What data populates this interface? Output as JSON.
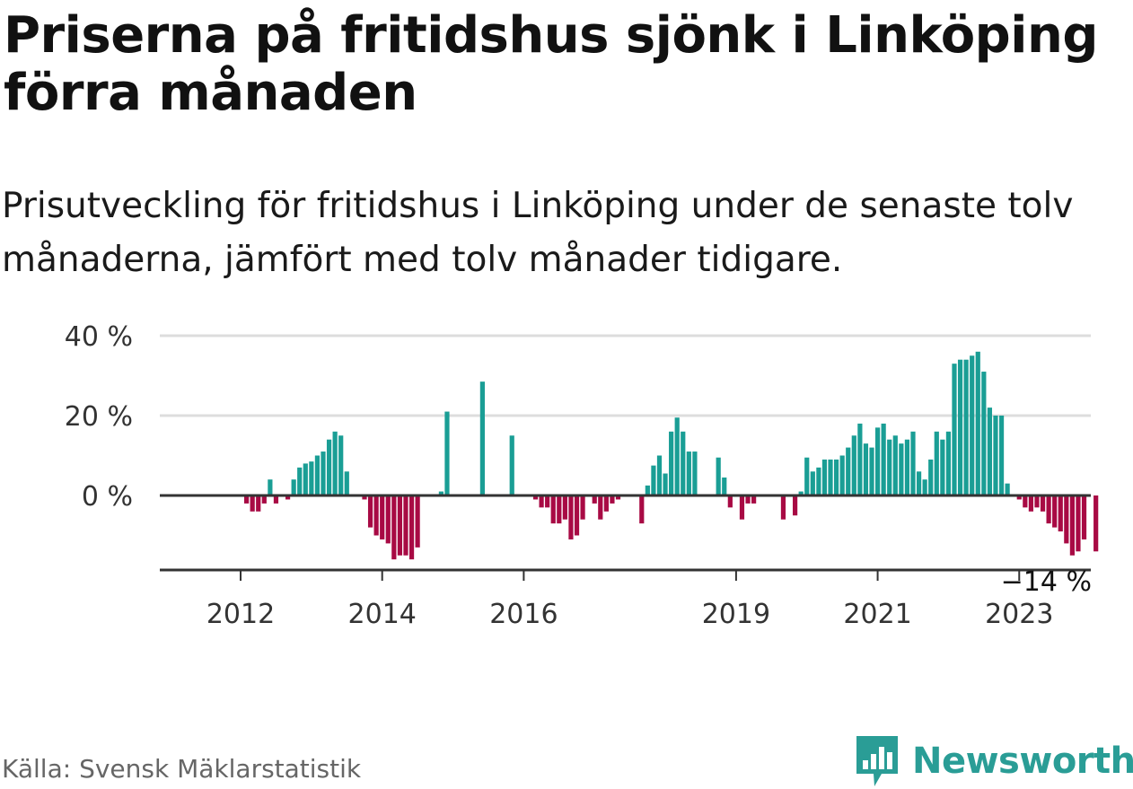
{
  "title": "Priserna på fritidshus sjönk i Linköping förra månaden",
  "subtitle": "Prisutveckling för fritidshus i Linköping under de senaste tolv månaderna, jämfört med tolv månader tidigare.",
  "source": "Källa: Svensk Mäklarstatistik",
  "brand": {
    "name": "Newsworthy",
    "color": "#2a9d96"
  },
  "colors": {
    "positive": "#1a9e95",
    "negative": "#a80a44",
    "grid": "#dddddd",
    "axis": "#333333"
  },
  "chart_data": {
    "type": "bar",
    "ylim": [
      -18,
      40
    ],
    "yticks": [
      0,
      20,
      40
    ],
    "ytick_labels": [
      "0 %",
      "20 %",
      "40 %"
    ],
    "xticks": [
      {
        "label": "2012",
        "index": 6
      },
      {
        "label": "2014",
        "index": 30
      },
      {
        "label": "2016",
        "index": 54
      },
      {
        "label": "2019",
        "index": 90
      },
      {
        "label": "2021",
        "index": 114
      },
      {
        "label": "2023",
        "index": 138
      }
    ],
    "end_label": "−14 %",
    "grid": true,
    "values": [
      null,
      null,
      null,
      null,
      null,
      null,
      null,
      -2,
      -4,
      -4,
      -2,
      4,
      -2,
      null,
      -1,
      4,
      7,
      8,
      8.5,
      10,
      11,
      14,
      16,
      15,
      6,
      null,
      null,
      -1,
      -8,
      -10,
      -11,
      -12,
      -16,
      -15,
      -15,
      -16,
      -13,
      null,
      null,
      null,
      1,
      21,
      null,
      null,
      null,
      null,
      null,
      28.5,
      null,
      null,
      null,
      null,
      15,
      null,
      null,
      null,
      -1,
      -3,
      -3,
      -7,
      -7,
      -6,
      -11,
      -10,
      -6,
      null,
      -2,
      -6,
      -4,
      -2,
      -1,
      null,
      null,
      null,
      -7,
      2.5,
      7.5,
      10,
      5.5,
      16,
      19.5,
      16,
      11,
      11,
      null,
      null,
      null,
      9.5,
      4.5,
      -3,
      null,
      -6,
      -2,
      -2,
      null,
      null,
      null,
      null,
      -6,
      null,
      -5,
      1,
      9.5,
      6,
      7,
      9,
      9,
      9,
      10,
      12,
      15,
      18,
      13,
      12,
      17,
      18,
      14,
      15,
      13,
      14,
      16,
      6,
      4,
      9,
      16,
      14,
      16,
      33,
      34,
      34,
      35,
      36,
      31,
      22,
      20,
      20,
      3,
      null,
      -1,
      -3,
      -4,
      -3,
      -4,
      -7,
      -8,
      -9,
      -12,
      -15,
      -14,
      -11,
      null,
      -14
    ]
  }
}
